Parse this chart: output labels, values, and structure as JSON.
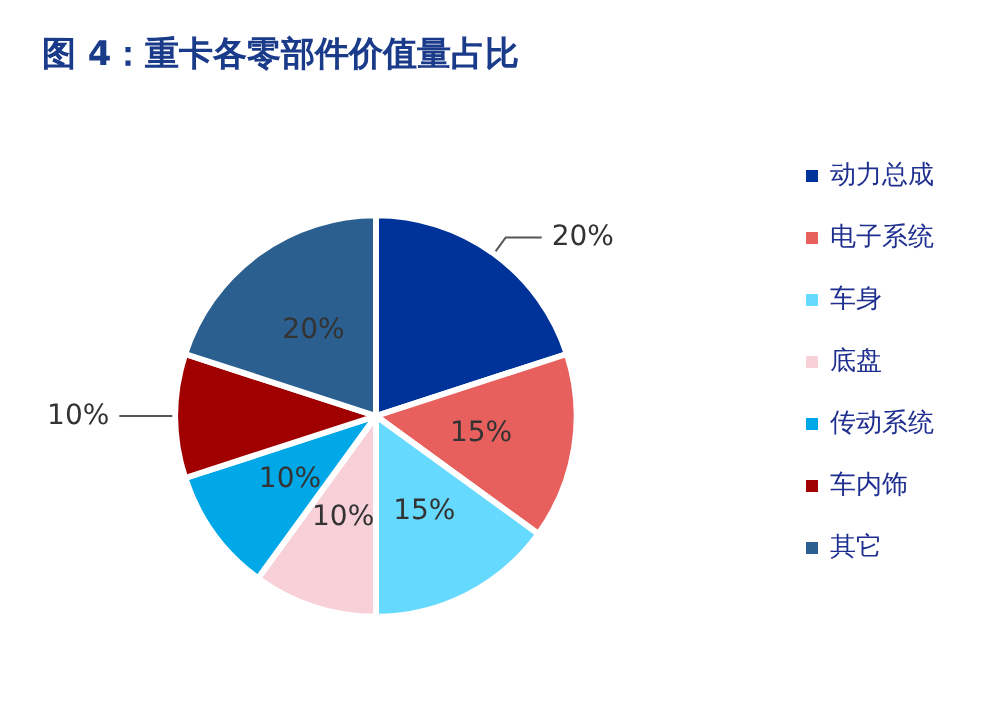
{
  "chart_data": {
    "type": "pie",
    "title": "图 4：重卡各零部件价值量占比",
    "categories": [
      "动力总成",
      "电子系统",
      "车身",
      "底盘",
      "传动系统",
      "车内饰",
      "其它"
    ],
    "values": [
      20,
      15,
      15,
      10,
      10,
      10,
      20
    ],
    "colors": [
      "#003399",
      "#e8605e",
      "#66d9ff",
      "#f8d0d8",
      "#00a8e8",
      "#a00000",
      "#2a5f8f"
    ],
    "value_labels": [
      "20%",
      "15%",
      "15%",
      "10%",
      "10%",
      "10%",
      "20%"
    ],
    "legend": "right"
  }
}
